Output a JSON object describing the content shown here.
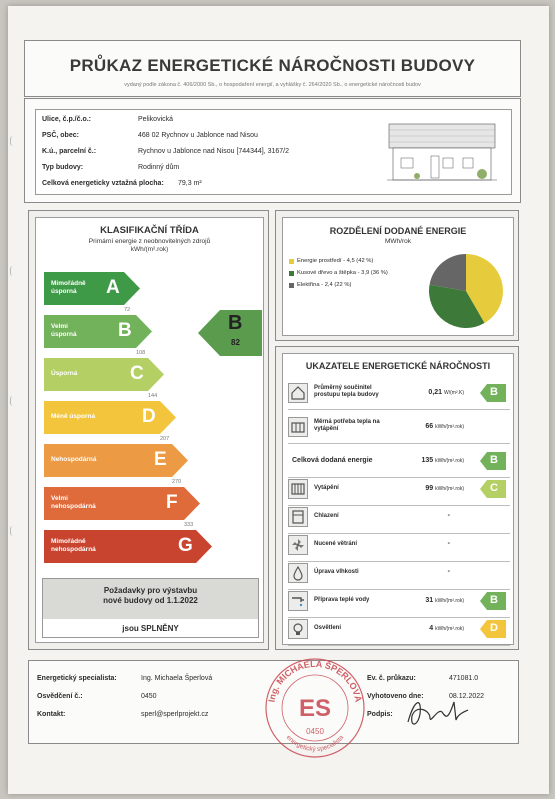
{
  "header": {
    "title": "PRŮKAZ ENERGETICKÉ NÁROČNOSTI BUDOVY",
    "subtitle": "vydaný podle zákona č. 406/2000 Sb., o hospodaření energií, a vyhlášky č. 264/2020 Sb., o energetické náročnosti budov"
  },
  "info": {
    "street_label": "Ulice, č.p./č.o.:",
    "street_value": "Pelikovická",
    "psc_label": "PSČ, obec:",
    "psc_value": "468 02 Rychnov u Jablonce nad Nisou",
    "ku_label": "K.ú., parcelní č.:",
    "ku_value": "Rychnov u Jablonce nad Nisou [744344], 3167/2",
    "type_label": "Typ budovy:",
    "type_value": "Rodinný dům",
    "area_label": "Celková energeticky vztažná plocha:",
    "area_value": "79,3 m²"
  },
  "classification": {
    "title": "KLASIFIKAČNÍ TŘÍDA",
    "subtitle": "Primární energie z neobnovitelných zdrojů",
    "unit": "kWh/(m².rok)",
    "classes": [
      {
        "label1": "Mimořádně",
        "label2": "úsporná",
        "letter": "A",
        "color": "#3f9a47"
      },
      {
        "label1": "Velmi",
        "label2": "úsporná",
        "letter": "B",
        "color": "#72b25a"
      },
      {
        "label1": "Úsporná",
        "label2": "",
        "letter": "C",
        "color": "#b4cf63"
      },
      {
        "label1": "Méně úsporná",
        "label2": "",
        "letter": "D",
        "color": "#f2c53d"
      },
      {
        "label1": "Nehospodárná",
        "label2": "",
        "letter": "E",
        "color": "#ec9a43"
      },
      {
        "label1": "Velmi",
        "label2": "nehospodárná",
        "letter": "F",
        "color": "#df6a3a"
      },
      {
        "label1": "Mimořádně",
        "label2": "nehospodárná",
        "letter": "G",
        "color": "#c8442f"
      }
    ],
    "thresholds": [
      "72",
      "108",
      "144",
      "207",
      "270",
      "333"
    ],
    "result_letter": "B",
    "result_value": "82",
    "result_color": "#5a9b4e",
    "req_line1": "Požadavky pro výstavbu",
    "req_line2": "nové budovy od 1.1.2022",
    "req_result": "jsou SPLNĚNY"
  },
  "distribution": {
    "title": "ROZDĚLENÍ DODANÉ ENERGIE",
    "unit": "MWh/rok",
    "items": [
      {
        "label": "Energie prostředí - 4,5 (42 %)",
        "value": 4.5,
        "color": "#e6cc3c"
      },
      {
        "label": "Kusové dřevo a štěpka - 3,9 (36 %)",
        "value": 3.9,
        "color": "#3d7a3a"
      },
      {
        "label": "Elektřina - 2,4 (22 %)",
        "value": 2.4,
        "color": "#666666"
      }
    ]
  },
  "indicators": {
    "title": "UKAZATELE ENERGETICKÉ NÁROČNOSTI",
    "rows": [
      {
        "label": "Průměrný součinitel prostupu tepla budovy",
        "value": "0,21",
        "unit": "W/(m².K)",
        "cls": "B",
        "color": "#72b25a",
        "icon": "house-icon"
      },
      {
        "label": "Měrná potřeba tepla na vytápění",
        "value": "66",
        "unit": "kWh/(m².rok)",
        "cls": "",
        "color": "",
        "icon": "radiator-icon"
      },
      {
        "label": "Celková dodaná energie",
        "value": "135",
        "unit": "kWh/(m².rok)",
        "cls": "B",
        "color": "#72b25a",
        "icon": ""
      },
      {
        "label": "Vytápění",
        "value": "99",
        "unit": "kWh/(m².rok)",
        "cls": "C",
        "color": "#b4cf63",
        "icon": "heating-icon"
      },
      {
        "label": "Chlazení",
        "value": "-",
        "unit": "",
        "cls": "",
        "color": "",
        "icon": "cooling-icon"
      },
      {
        "label": "Nucené větrání",
        "value": "-",
        "unit": "",
        "cls": "",
        "color": "",
        "icon": "fan-icon"
      },
      {
        "label": "Úprava vlhkosti",
        "value": "-",
        "unit": "",
        "cls": "",
        "color": "",
        "icon": "humidity-icon"
      },
      {
        "label": "Příprava teplé vody",
        "value": "31",
        "unit": "kWh/(m².rok)",
        "cls": "B",
        "color": "#72b25a",
        "icon": "tap-icon"
      },
      {
        "label": "Osvětlení",
        "value": "4",
        "unit": "kWh/(m².rok)",
        "cls": "D",
        "color": "#f2c53d",
        "icon": "bulb-icon"
      }
    ]
  },
  "footer": {
    "spec_label": "Energetický specialista:",
    "spec_value": "Ing. Michaela Šperlová",
    "cert_label": "Osvědčení č.:",
    "cert_value": "0450",
    "contact_label": "Kontakt:",
    "contact_value": "sperl@sperlprojekt.cz",
    "ev_label": "Ev. č. průkazu:",
    "ev_value": "471081.0",
    "date_label": "Vyhotoveno dne:",
    "date_value": "08.12.2022",
    "sign_label": "Podpis:"
  },
  "stamp": {
    "text": "Ing. MICHAELA ŠPERLOVÁ",
    "number": "0450",
    "bottom": "energetický specialista",
    "initials": "ES"
  }
}
